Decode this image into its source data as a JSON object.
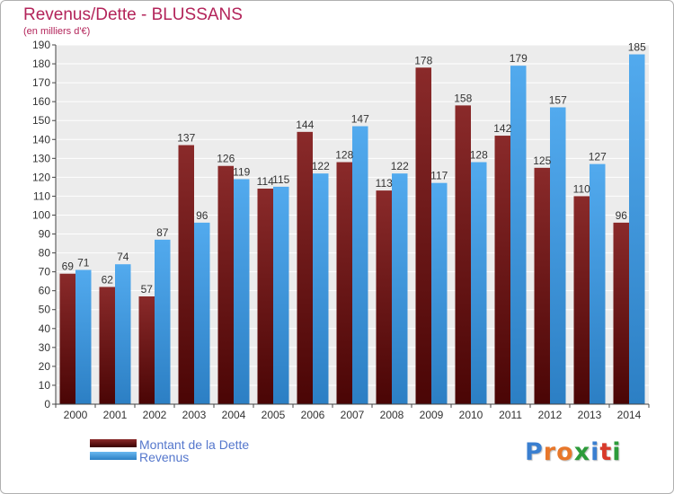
{
  "colors": {
    "title": "#b3245a",
    "dette": "#7a1a1a",
    "revenus": "#3a96dc",
    "legend_text": "#5577cc"
  },
  "brand": {
    "text": "Proxiti",
    "letter_colors": [
      "#3a7fd0",
      "#e8772a",
      "#e8772a",
      "#2c9b3a",
      "#3a7fd0",
      "#d83a2a",
      "#2c9b3a"
    ]
  },
  "chart_data": {
    "type": "bar",
    "title": "Revenus/Dette - BLUSSANS",
    "subtitle": "(en milliers d'€)",
    "categories": [
      "2000",
      "2001",
      "2002",
      "2003",
      "2004",
      "2005",
      "2006",
      "2007",
      "2008",
      "2009",
      "2010",
      "2011",
      "2012",
      "2013",
      "2014"
    ],
    "series": [
      {
        "name": "Montant de la Dette",
        "values": [
          69,
          62,
          57,
          137,
          126,
          114,
          144,
          128,
          113,
          178,
          158,
          142,
          125,
          110,
          96
        ]
      },
      {
        "name": "Revenus",
        "values": [
          71,
          74,
          87,
          96,
          119,
          115,
          122,
          147,
          122,
          117,
          128,
          179,
          157,
          127,
          185
        ]
      }
    ],
    "ylim": [
      0,
      190
    ],
    "ytick_step": 10,
    "grid": true,
    "legend_position": "bottom-left"
  }
}
